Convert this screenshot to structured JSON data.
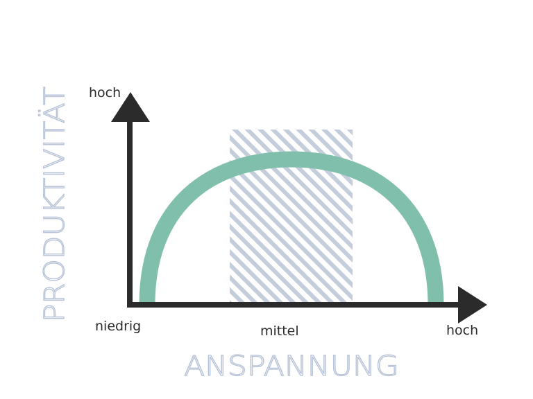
{
  "x_axis": {
    "title": "ANSPANNUNG",
    "low_label": "niedrig",
    "mid_label": "mittel",
    "high_label": "hoch"
  },
  "y_axis": {
    "title": "PRODUKTIVITÄT",
    "high_label": "hoch"
  },
  "colors": {
    "axis": "#2b2b2b",
    "curve": "#7fbfab",
    "hatch": "#c4cddc",
    "title": "#b6c2d6"
  }
}
